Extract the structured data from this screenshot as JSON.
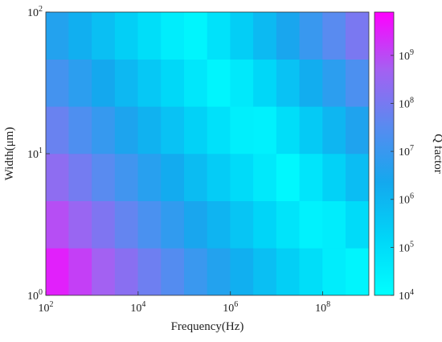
{
  "chart_data": {
    "type": "heatmap",
    "xlabel": "Frequency(Hz)",
    "ylabel": "Width(μm)",
    "colorbar_label": "Q factor",
    "log_x": true,
    "log_y": true,
    "log_color": true,
    "x": [
      178,
      562,
      1780,
      5620,
      17800,
      56200,
      178000,
      562000,
      1780000,
      5620000,
      17800000,
      56200000,
      178000000,
      562000000
    ],
    "y": [
      1.47,
      3.16,
      6.81,
      14.7,
      31.6,
      68.1
    ],
    "values": [
      [
        3200000000.0,
        1300000000.0,
        480000000.0,
        190000000.0,
        71000000.0,
        28000000.0,
        10000000.0,
        4100000.0,
        1500000.0,
        600000.0,
        230000.0,
        89000.0,
        34000.0,
        20000.0
      ],
      [
        850000000.0,
        330000000.0,
        130000000.0,
        49000000.0,
        19000000.0,
        7200000.0,
        2800000.0,
        1100000.0,
        410000.0,
        160000.0,
        60000.0,
        23000.0,
        33000.0,
        110000.0
      ],
      [
        220000000.0,
        87000000.0,
        33000000.0,
        13000000.0,
        4900000.0,
        1900000.0,
        720000.0,
        280000.0,
        110000.0,
        42000.0,
        16000.0,
        55000.0,
        190000.0,
        650000.0
      ],
      [
        59000000.0,
        22000000.0,
        8700000.0,
        3300000.0,
        1300000.0,
        490000.0,
        190000.0,
        72000.0,
        28000.0,
        26000.0,
        89000.0,
        300000.0,
        1000000.0,
        3500000.0
      ],
      [
        15000000.0,
        5900000.0,
        2300000.0,
        870000.0,
        340000.0,
        130000.0,
        50000.0,
        19000.0,
        43000.0,
        140000.0,
        500000.0,
        1700000.0,
        5900000.0,
        20000000.0
      ],
      [
        4100000.0,
        1500000.0,
        600000.0,
        230000.0,
        89000.0,
        34000.0,
        20000.0,
        69000.0,
        240000.0,
        810000.0,
        2800000.0,
        9500000.0,
        33000000.0,
        110000000.0
      ]
    ],
    "xlim": [
      100,
      1000000000
    ],
    "ylim": [
      1,
      100
    ],
    "clim": [
      10000,
      8000000000
    ],
    "xticks": [
      {
        "value": 100,
        "label": "10^2"
      },
      {
        "value": 10000,
        "label": "10^4"
      },
      {
        "value": 1000000,
        "label": "10^6"
      },
      {
        "value": 100000000,
        "label": "10^8"
      }
    ],
    "yticks": [
      {
        "value": 1,
        "label": "10^0"
      },
      {
        "value": 10,
        "label": "10^1"
      },
      {
        "value": 100,
        "label": "10^2"
      }
    ],
    "cticks": [
      {
        "value": 10000,
        "label": "10^4"
      },
      {
        "value": 100000,
        "label": "10^5"
      },
      {
        "value": 1000000,
        "label": "10^6"
      },
      {
        "value": 10000000,
        "label": "10^7"
      },
      {
        "value": 100000000,
        "label": "10^8"
      },
      {
        "value": 1000000000,
        "label": "10^9"
      }
    ],
    "colormap": [
      "#00ffff",
      "#00d6f8",
      "#14a8ee",
      "#5a8af0",
      "#a65ff2",
      "#ff00ff"
    ]
  }
}
